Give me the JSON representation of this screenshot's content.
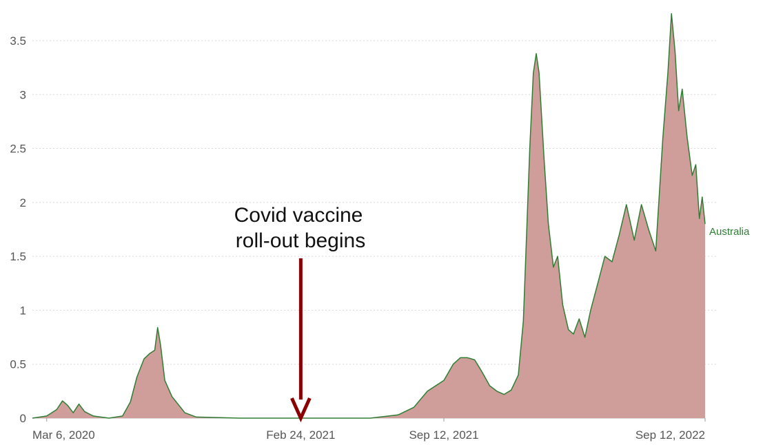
{
  "chart_data": {
    "type": "area",
    "series": [
      {
        "name": "Australia",
        "color": "#2e7d32",
        "fill_color": "#cf9e9b",
        "points": [
          [
            "2020-02-15",
            0
          ],
          [
            "2020-03-06",
            0.02
          ],
          [
            "2020-03-20",
            0.08
          ],
          [
            "2020-03-28",
            0.16
          ],
          [
            "2020-04-04",
            0.12
          ],
          [
            "2020-04-12",
            0.05
          ],
          [
            "2020-04-20",
            0.13
          ],
          [
            "2020-04-28",
            0.06
          ],
          [
            "2020-05-10",
            0.02
          ],
          [
            "2020-06-01",
            0.0
          ],
          [
            "2020-06-20",
            0.02
          ],
          [
            "2020-07-01",
            0.15
          ],
          [
            "2020-07-10",
            0.38
          ],
          [
            "2020-07-20",
            0.55
          ],
          [
            "2020-07-28",
            0.6
          ],
          [
            "2020-08-04",
            0.63
          ],
          [
            "2020-08-08",
            0.84
          ],
          [
            "2020-08-12",
            0.68
          ],
          [
            "2020-08-18",
            0.35
          ],
          [
            "2020-08-28",
            0.2
          ],
          [
            "2020-09-15",
            0.05
          ],
          [
            "2020-10-01",
            0.01
          ],
          [
            "2020-12-01",
            0.0
          ],
          [
            "2021-02-24",
            0.0
          ],
          [
            "2021-06-01",
            0.0
          ],
          [
            "2021-07-10",
            0.03
          ],
          [
            "2021-08-01",
            0.1
          ],
          [
            "2021-08-20",
            0.25
          ],
          [
            "2021-09-12",
            0.35
          ],
          [
            "2021-09-25",
            0.5
          ],
          [
            "2021-10-05",
            0.56
          ],
          [
            "2021-10-15",
            0.56
          ],
          [
            "2021-10-25",
            0.54
          ],
          [
            "2021-11-05",
            0.42
          ],
          [
            "2021-11-15",
            0.3
          ],
          [
            "2021-11-25",
            0.25
          ],
          [
            "2021-12-05",
            0.22
          ],
          [
            "2021-12-15",
            0.26
          ],
          [
            "2021-12-25",
            0.4
          ],
          [
            "2022-01-01",
            0.9
          ],
          [
            "2022-01-05",
            1.6
          ],
          [
            "2022-01-10",
            2.5
          ],
          [
            "2022-01-15",
            3.2
          ],
          [
            "2022-01-19",
            3.38
          ],
          [
            "2022-01-23",
            3.2
          ],
          [
            "2022-01-30",
            2.4
          ],
          [
            "2022-02-05",
            1.8
          ],
          [
            "2022-02-12",
            1.4
          ],
          [
            "2022-02-18",
            1.5
          ],
          [
            "2022-02-25",
            1.05
          ],
          [
            "2022-03-05",
            0.82
          ],
          [
            "2022-03-12",
            0.78
          ],
          [
            "2022-03-20",
            0.92
          ],
          [
            "2022-03-28",
            0.75
          ],
          [
            "2022-04-05",
            1.0
          ],
          [
            "2022-04-15",
            1.25
          ],
          [
            "2022-04-25",
            1.5
          ],
          [
            "2022-05-05",
            1.45
          ],
          [
            "2022-05-15",
            1.7
          ],
          [
            "2022-05-25",
            1.98
          ],
          [
            "2022-06-05",
            1.65
          ],
          [
            "2022-06-15",
            1.98
          ],
          [
            "2022-06-25",
            1.75
          ],
          [
            "2022-07-05",
            1.55
          ],
          [
            "2022-07-15",
            2.6
          ],
          [
            "2022-07-22",
            3.2
          ],
          [
            "2022-07-27",
            3.75
          ],
          [
            "2022-08-01",
            3.4
          ],
          [
            "2022-08-06",
            2.85
          ],
          [
            "2022-08-11",
            3.05
          ],
          [
            "2022-08-18",
            2.6
          ],
          [
            "2022-08-25",
            2.25
          ],
          [
            "2022-08-30",
            2.35
          ],
          [
            "2022-09-04",
            1.85
          ],
          [
            "2022-09-08",
            2.05
          ],
          [
            "2022-09-12",
            1.8
          ]
        ]
      }
    ],
    "x_type": "date",
    "x_ticks": [
      "Mar 6, 2020",
      "Feb 24, 2021",
      "Sep 12, 2021",
      "Sep 12, 2022"
    ],
    "y_ticks": [
      0,
      0.5,
      1,
      1.5,
      2,
      2.5,
      3,
      3.5
    ],
    "ylim": [
      0,
      3.8
    ],
    "xlim": [
      "2020-02-15",
      "2022-09-12"
    ],
    "grid": true,
    "legend": "right-end label",
    "annotation": {
      "text_line1": "Covid vaccine",
      "text_line2": "roll-out begins",
      "x": "2021-02-24",
      "color": "#8b0000"
    }
  }
}
